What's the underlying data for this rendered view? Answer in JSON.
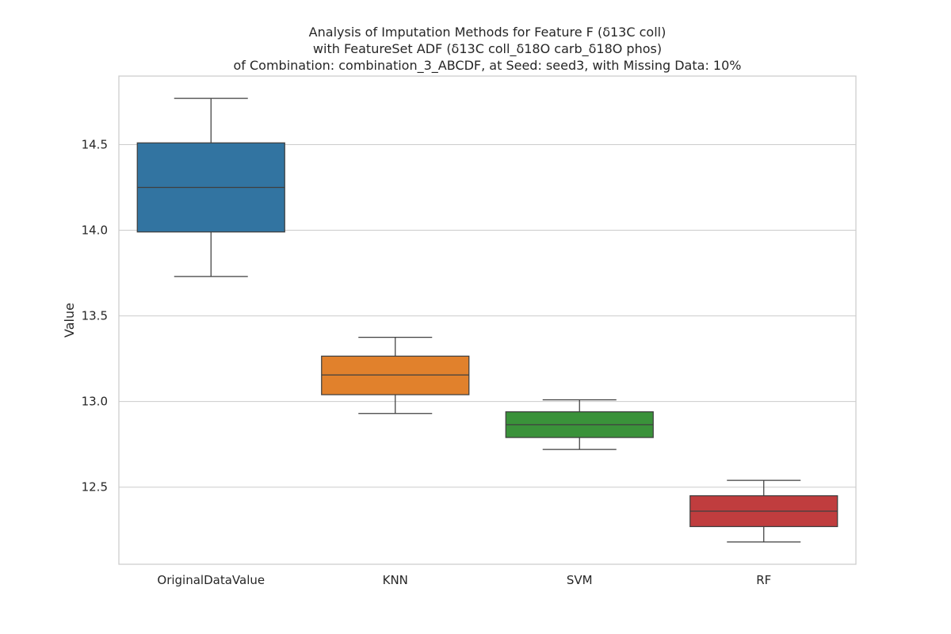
{
  "chart_data": {
    "type": "box",
    "title_lines": [
      "Analysis of Imputation Methods for Feature F (δ13C coll)",
      "with FeatureSet ADF (δ13C coll_δ18O carb_δ18O phos)",
      "of Combination: combination_3_ABCDF, at Seed: seed3, with Missing Data: 10%"
    ],
    "xlabel": "",
    "ylabel": "Value",
    "ylim": [
      12.05,
      14.9
    ],
    "yticks": [
      12.5,
      13.0,
      13.5,
      14.0,
      14.5
    ],
    "ytick_labels": [
      "12.5",
      "13.0",
      "13.5",
      "14.0",
      "14.5"
    ],
    "grid": true,
    "categories": [
      "OriginalDataValue",
      "KNN",
      "SVM",
      "RF"
    ],
    "colors": [
      "#3274a1",
      "#e1812c",
      "#3a923a",
      "#c03d3e"
    ],
    "boxes": [
      {
        "category": "OriginalDataValue",
        "whisker_low": 13.73,
        "q1": 13.99,
        "median": 14.25,
        "q3": 14.51,
        "whisker_high": 14.77
      },
      {
        "category": "KNN",
        "whisker_low": 12.93,
        "q1": 13.04,
        "median": 13.155,
        "q3": 13.265,
        "whisker_high": 13.375
      },
      {
        "category": "SVM",
        "whisker_low": 12.72,
        "q1": 12.79,
        "median": 12.865,
        "q3": 12.94,
        "whisker_high": 13.01
      },
      {
        "category": "RF",
        "whisker_low": 12.18,
        "q1": 12.27,
        "median": 12.36,
        "q3": 12.45,
        "whisker_high": 12.54
      }
    ]
  }
}
